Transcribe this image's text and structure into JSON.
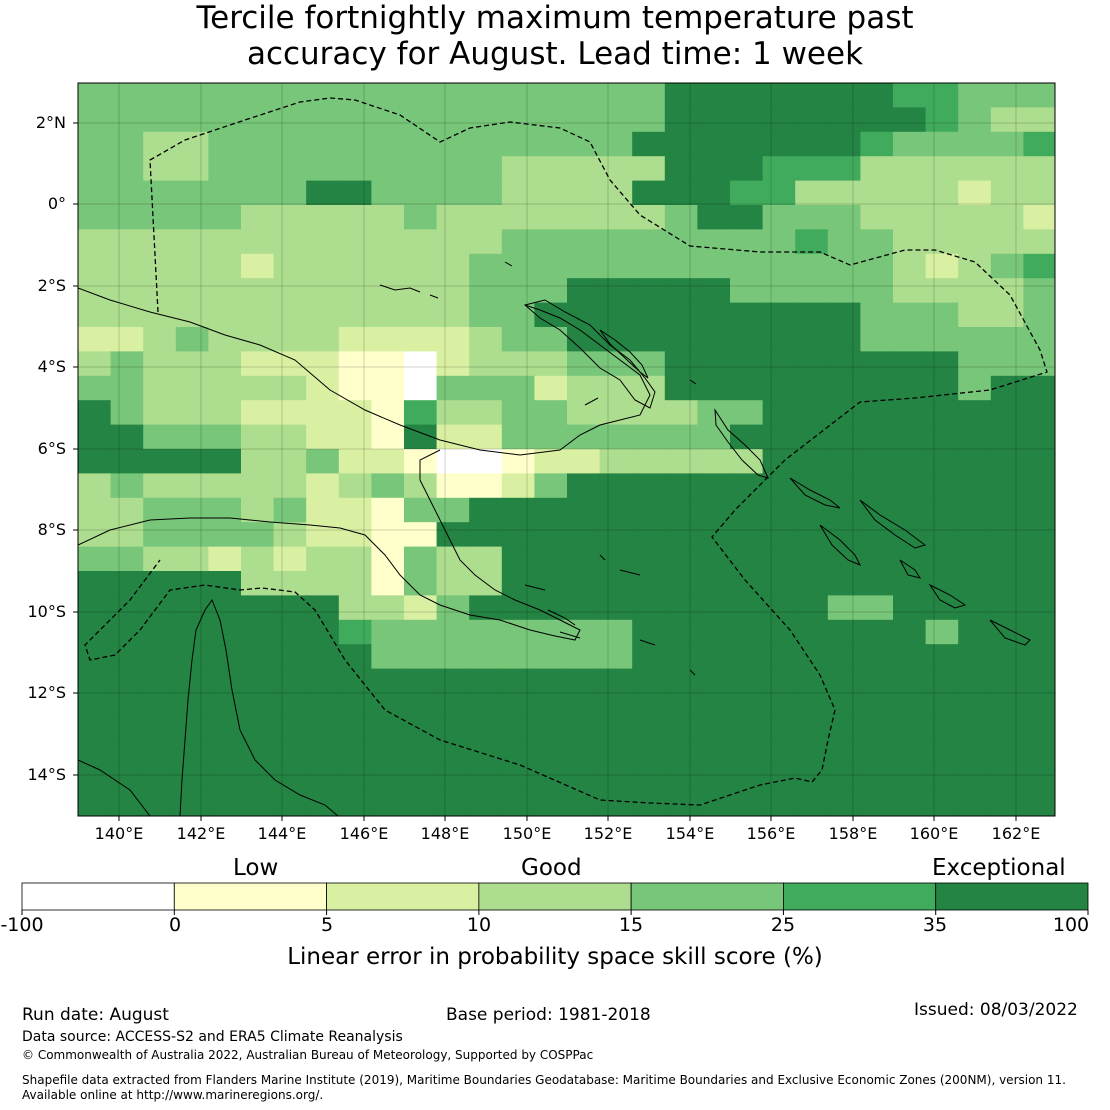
{
  "title": {
    "line1": "Tercile fortnightly maximum temperature past",
    "line2": "accuracy for August. Lead time: 1 week"
  },
  "map": {
    "lat_labels": [
      "2°N",
      "0°",
      "2°S",
      "4°S",
      "6°S",
      "8°S",
      "10°S",
      "12°S",
      "14°S"
    ],
    "lon_labels": [
      "140°E",
      "142°E",
      "144°E",
      "146°E",
      "148°E",
      "150°E",
      "152°E",
      "154°E",
      "156°E",
      "158°E",
      "160°E",
      "162°E"
    ]
  },
  "legend": {
    "categories": [
      "Low",
      "Good",
      "Exceptional"
    ],
    "bounds": [
      "-100",
      "0",
      "5",
      "10",
      "15",
      "25",
      "35",
      "100"
    ],
    "colors": [
      "#ffffff",
      "#ffffcc",
      "#d9f0a3",
      "#addd8e",
      "#78c679",
      "#41ab5d",
      "#238443"
    ],
    "axis_label": "Linear error in probability space skill score (%)"
  },
  "footer": {
    "run_date": "Run date: August",
    "base_period": "Base period: 1981-2018",
    "issued": "Issued: 08/03/2022",
    "data_source": "Data source: ACCESS-S2 and ERA5 Climate Reanalysis",
    "copyright": "© Commonwealth of Australia 2022, Australian Bureau of Meteorology, Supported by COSPPac",
    "shapefile_line1": "Shapefile data extracted from Flanders Marine Institute (2019), Maritime Boundaries Geodatabase: Maritime Boundaries and Exclusive Economic Zones (200NM), version 11.",
    "shapefile_line2": "Available online at http://www.marineregions.org/."
  }
}
